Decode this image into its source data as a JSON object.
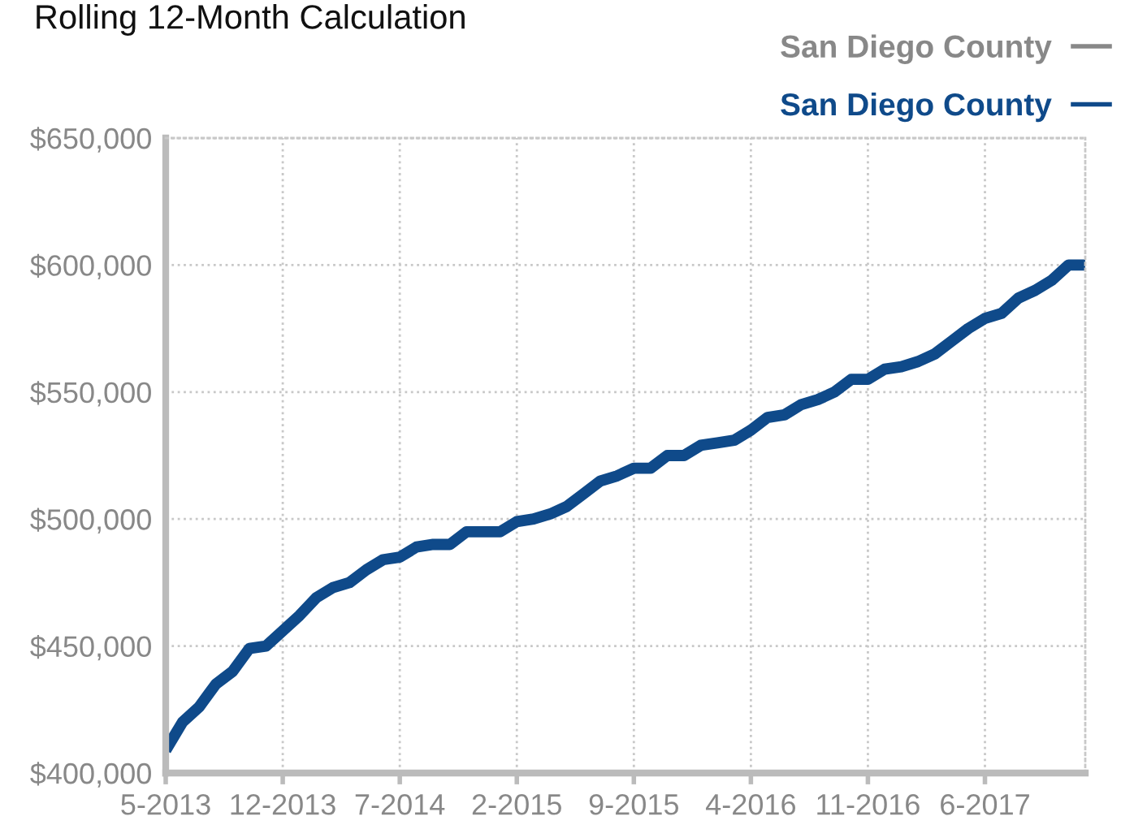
{
  "chart_data": {
    "type": "line",
    "title": "Rolling 12-Month Calculation",
    "categories": [
      "5-2013",
      null,
      null,
      null,
      null,
      null,
      null,
      "12-2013",
      null,
      null,
      null,
      null,
      null,
      null,
      "7-2014",
      null,
      null,
      null,
      null,
      null,
      null,
      "2-2015",
      null,
      null,
      null,
      null,
      null,
      null,
      "9-2015",
      null,
      null,
      null,
      null,
      null,
      null,
      "4-2016",
      null,
      null,
      null,
      null,
      null,
      null,
      "11-2016",
      null,
      null,
      null,
      null,
      null,
      null,
      "6-2017",
      null,
      null,
      null,
      null,
      null,
      null
    ],
    "series": [
      {
        "name": "San Diego County",
        "color": "#888888",
        "values": [
          null,
          null,
          null,
          null,
          null,
          null,
          null,
          null,
          null,
          null,
          null,
          null,
          null,
          null,
          null,
          null,
          null,
          null,
          null,
          null,
          null,
          null,
          null,
          null,
          null,
          null,
          null,
          null,
          null,
          null,
          null,
          null,
          null,
          null,
          null,
          null,
          null,
          null,
          null,
          null,
          null,
          null,
          null,
          null,
          null,
          null,
          null,
          null,
          null,
          null,
          null,
          null,
          null,
          null,
          null,
          null
        ]
      },
      {
        "name": "San Diego County",
        "color": "#0f4a8a",
        "values": [
          409000,
          420000,
          426000,
          435000,
          440000,
          449000,
          450000,
          456000,
          462000,
          469000,
          473000,
          475000,
          480000,
          484000,
          485000,
          489000,
          490000,
          490000,
          495000,
          495000,
          495000,
          499000,
          500000,
          502000,
          505000,
          510000,
          515000,
          517000,
          520000,
          520000,
          525000,
          525000,
          529000,
          530000,
          531000,
          535000,
          540000,
          541000,
          545000,
          547000,
          550000,
          555000,
          555000,
          559000,
          560000,
          562000,
          565000,
          570000,
          575000,
          579000,
          581000,
          587000,
          590000,
          594000,
          600000,
          600000
        ]
      }
    ],
    "ylim": [
      400000,
      650000
    ],
    "yticks": [
      {
        "value": 400000,
        "label": "$400,000"
      },
      {
        "value": 450000,
        "label": "$450,000"
      },
      {
        "value": 500000,
        "label": "$500,000"
      },
      {
        "value": 550000,
        "label": "$550,000"
      },
      {
        "value": 600000,
        "label": "$600,000"
      },
      {
        "value": 650000,
        "label": "$650,000"
      }
    ],
    "grid": true,
    "legend": "top right",
    "line_style": "solid",
    "marker": "none"
  }
}
